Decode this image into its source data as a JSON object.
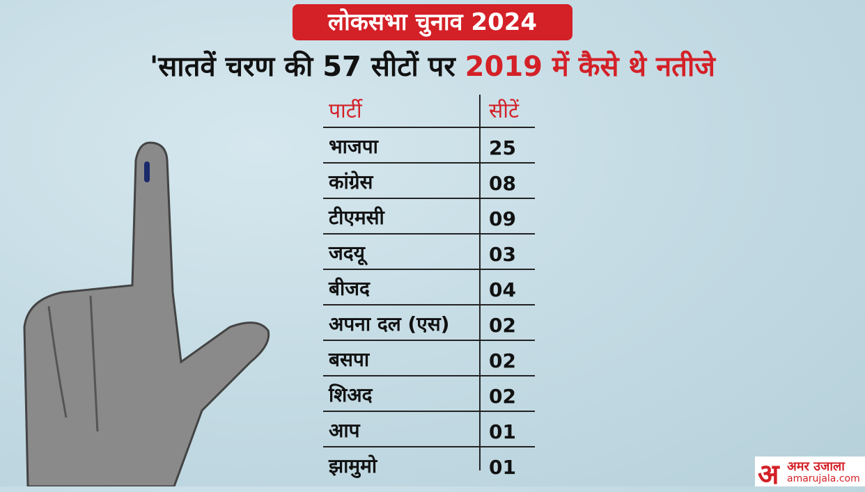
{
  "header": {
    "tag": "लोकसभा चुनाव 2024",
    "title": "'सातवें चरण की 57 सीटों पर ",
    "title_highlight": "2019 में कैसे थे नतीजे"
  },
  "table": {
    "columns": [
      "पार्टी",
      "सीटें"
    ],
    "rows": [
      [
        "भाजपा",
        "25"
      ],
      [
        "कांग्रेस",
        "08"
      ],
      [
        "टीएमसी",
        "09"
      ],
      [
        "जदयू",
        "03"
      ],
      [
        "बीजद",
        "04"
      ],
      [
        "अपना दल (एस)",
        "02"
      ],
      [
        "बसपा",
        "02"
      ],
      [
        "शिअद",
        "02"
      ],
      [
        "आप",
        "01"
      ],
      [
        "झामुमो",
        "01"
      ]
    ]
  },
  "logo": {
    "mark": "अ",
    "name": "अमर उजाला",
    "url": "amarujala.com"
  }
}
